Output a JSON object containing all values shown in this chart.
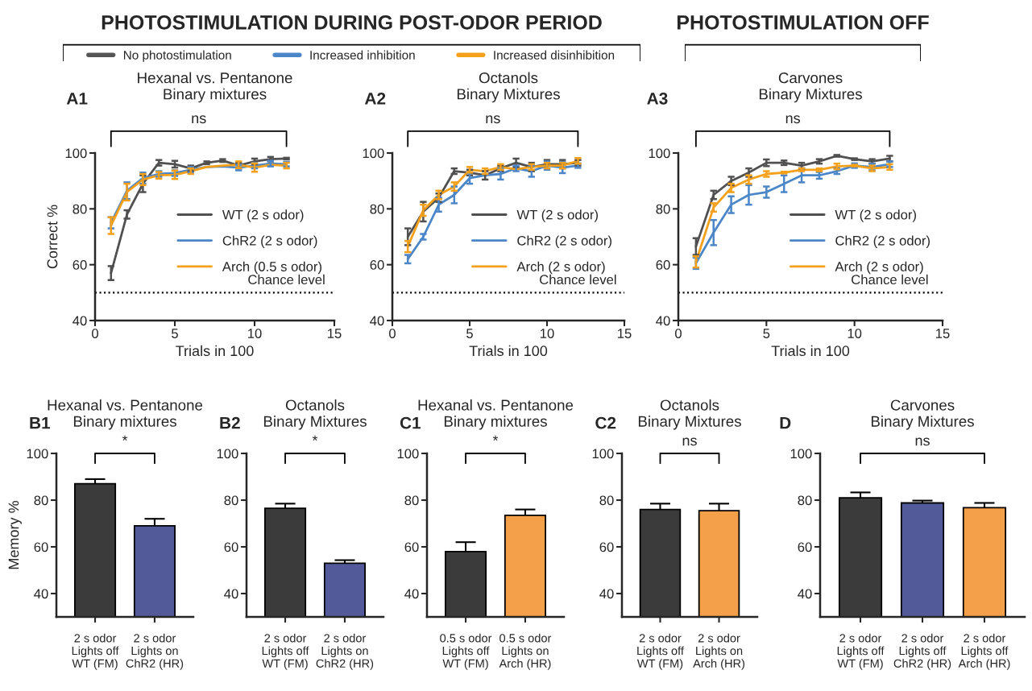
{
  "chart_data": [
    {
      "type": "other",
      "title": "PHOTOSTIMULATION DURING POST-ODOR PERIOD",
      "legend": "bottom",
      "series": [
        {
          "name": "No photostimulation",
          "color": "#555555"
        },
        {
          "name": "Increased inhibition",
          "color": "#4a86c8"
        },
        {
          "name": "Increased disinhibition",
          "color": "#f5a01a"
        }
      ]
    },
    {
      "type": "other",
      "title": "PHOTOSTIMULATION OFF"
    },
    {
      "type": "line",
      "title": "Hexanal vs. Pentanone\nBinary mixtures",
      "xlabel": "Trials in 100",
      "ylabel": "Correct %",
      "annotations": [
        "A1",
        "ns"
      ],
      "x": [
        1,
        2,
        3,
        4,
        5,
        6,
        7,
        8,
        9,
        10,
        11,
        12
      ],
      "xlim": [
        0,
        15
      ],
      "xticks": [
        0,
        5,
        10,
        15
      ],
      "ylim": [
        40,
        100
      ],
      "yticks": [
        40,
        60,
        80,
        100
      ],
      "legend": "right",
      "marker": "none",
      "line_style": "solid",
      "ref_lines": [
        {
          "axis": "y",
          "value": 50,
          "label": "Chance level",
          "line_style": "dotted",
          "color": "#000000"
        }
      ],
      "series": [
        {
          "name": "WT (2 s odor)",
          "color": "#505050",
          "values": [
            57,
            78,
            89,
            96.5,
            96,
            94.5,
            96.5,
            97.3,
            95.5,
            97,
            97.8,
            98
          ],
          "errors": [
            2.5,
            1.5,
            3,
            1,
            1.2,
            1,
            0.5,
            0.5,
            1,
            1,
            0.8,
            0.3
          ]
        },
        {
          "name": "ChR2 (2 s odor)",
          "color": "#4a86c8",
          "values": [
            75,
            86.5,
            91,
            92.5,
            92.8,
            94,
            95,
            95.2,
            94.8,
            95.5,
            96.2,
            96
          ],
          "errors": [
            2,
            3,
            2,
            1,
            1,
            1,
            null,
            null,
            1,
            1,
            1,
            0.8
          ]
        },
        {
          "name": "Arch (0.5 s odor)",
          "color": "#f5a01a",
          "values": [
            74,
            86,
            90.5,
            92,
            92.2,
            93.5,
            95,
            95.5,
            95.8,
            94.8,
            95.8,
            95.5
          ],
          "errors": [
            3,
            3,
            2,
            1.2,
            1.5,
            1,
            null,
            null,
            1.2,
            1.5,
            null,
            1
          ]
        }
      ]
    },
    {
      "type": "line",
      "title": "Octanols\nBinary Mixtures",
      "xlabel": "Trials in 100",
      "annotations": [
        "A2",
        "ns"
      ],
      "x": [
        1,
        2,
        3,
        4,
        5,
        6,
        7,
        8,
        9,
        10,
        11,
        12
      ],
      "xlim": [
        0,
        15
      ],
      "xticks": [
        0,
        5,
        10,
        15
      ],
      "ylim": [
        40,
        100
      ],
      "yticks": [
        40,
        60,
        80,
        100
      ],
      "legend": "right",
      "marker": "none",
      "line_style": "solid",
      "ref_lines": [
        {
          "axis": "y",
          "value": 50,
          "label": "Chance level",
          "line_style": "dotted",
          "color": "#000000"
        }
      ],
      "series": [
        {
          "name": "WT (2 s odor)",
          "color": "#505050",
          "values": [
            70,
            79,
            84,
            93.5,
            93,
            92,
            94.5,
            96.5,
            95,
            96,
            96,
            96.5
          ],
          "errors": [
            3,
            3.5,
            1.5,
            1,
            1,
            1.5,
            1,
            1.5,
            1.5,
            1.5,
            1.5,
            1
          ]
        },
        {
          "name": "ChR2 (2 s odor)",
          "color": "#4a86c8",
          "values": [
            62,
            70,
            81.5,
            85,
            91,
            92,
            92.5,
            94.5,
            93.5,
            95.5,
            94.8,
            95.5
          ],
          "errors": [
            1.5,
            1,
            2.5,
            3,
            2,
            null,
            2,
            1,
            2,
            1.5,
            2,
            0.8
          ]
        },
        {
          "name": "Arch (2 s odor)",
          "color": "#f5a01a",
          "values": [
            66.5,
            79.5,
            85,
            88,
            94,
            93.5,
            95,
            94.2,
            95,
            95.5,
            95.5,
            97.2
          ],
          "errors": [
            2,
            2,
            1.5,
            1.5,
            1,
            1,
            1,
            null,
            1,
            1,
            1,
            1
          ]
        }
      ]
    },
    {
      "type": "line",
      "title": "Carvones\nBinary Mixtures",
      "xlabel": "Trials in 100",
      "annotations": [
        "A3",
        "ns"
      ],
      "x": [
        1,
        2,
        3,
        4,
        5,
        6,
        7,
        8,
        9,
        10,
        11,
        12
      ],
      "xlim": [
        0,
        15
      ],
      "xticks": [
        0,
        5,
        10,
        15
      ],
      "ylim": [
        40,
        100
      ],
      "yticks": [
        40,
        60,
        80,
        100
      ],
      "legend": "right",
      "marker": "none",
      "line_style": "solid",
      "ref_lines": [
        {
          "axis": "y",
          "value": 50,
          "label": "Chance level",
          "line_style": "dotted",
          "color": "#000000"
        }
      ],
      "series": [
        {
          "name": "WT (2 s odor)",
          "color": "#505050",
          "values": [
            66.5,
            85,
            90,
            93,
            96.5,
            96.5,
            95.5,
            97,
            99,
            97.8,
            97,
            98
          ],
          "errors": [
            3,
            1.5,
            1.5,
            1.5,
            1.2,
            0.8,
            1,
            0.8,
            0.3,
            0.3,
            0.8,
            1
          ]
        },
        {
          "name": "ChR2 (2 s odor)",
          "color": "#4a86c8",
          "values": [
            60.5,
            71.5,
            81.5,
            85,
            86,
            89,
            92,
            92,
            93.5,
            95.5,
            95,
            96
          ],
          "errors": [
            2,
            4.5,
            3,
            3.5,
            2,
            3,
            2.5,
            1.2,
            1,
            0.8,
            1.2,
            1
          ]
        },
        {
          "name": "Arch (2 s odor)",
          "color": "#f5a01a",
          "values": [
            61,
            80.5,
            87.5,
            90.5,
            92.5,
            93,
            94,
            94,
            95.2,
            95.5,
            94.5,
            95
          ],
          "errors": [
            2,
            1.5,
            1.5,
            1.5,
            1,
            0.3,
            0.5,
            0.5,
            1,
            0.3,
            1,
            1
          ]
        }
      ]
    },
    {
      "type": "bar",
      "title": "Hexanal vs. Pentanone\nBinary mixtures",
      "ylabel": "Memory %",
      "annotations": [
        "B1",
        "*"
      ],
      "categories": [
        "2 s odor\nLights off\nWT (FM)",
        "2 s odor\nLights on\nChR2 (HR)"
      ],
      "values": [
        87,
        69
      ],
      "errors": [
        2,
        3
      ],
      "colors": [
        "#3b3b3b",
        "#535a99"
      ],
      "ylim": [
        30,
        100
      ],
      "yticks": [
        40,
        60,
        80,
        100
      ]
    },
    {
      "type": "bar",
      "title": "Octanols\nBinary Mixtures",
      "annotations": [
        "B2",
        "*"
      ],
      "categories": [
        "2 s odor\nLights off\nWT (FM)",
        "2 s odor\nLights on\nChR2 (HR)"
      ],
      "values": [
        76.5,
        53
      ],
      "errors": [
        2,
        1.3
      ],
      "colors": [
        "#3b3b3b",
        "#535a99"
      ],
      "ylim": [
        30,
        100
      ],
      "yticks": [
        40,
        60,
        80,
        100
      ]
    },
    {
      "type": "bar",
      "title": "Hexanal vs. Pentanone\nBinary mixtures",
      "annotations": [
        "C1",
        "*"
      ],
      "categories": [
        "0.5 s odor\nLights off\nWT (FM)",
        "0.5 s odor\nLights on\nArch (HR)"
      ],
      "values": [
        58,
        73.5
      ],
      "errors": [
        4,
        2.5
      ],
      "colors": [
        "#3b3b3b",
        "#f4a04a"
      ],
      "ylim": [
        30,
        100
      ],
      "yticks": [
        40,
        60,
        80,
        100
      ]
    },
    {
      "type": "bar",
      "title": "Octanols\nBinary Mixtures",
      "annotations": [
        "C2",
        "ns"
      ],
      "categories": [
        "2 s odor\nLights off\nWT (FM)",
        "2 s odor\nLights on\nArch (HR)"
      ],
      "values": [
        76,
        75.5
      ],
      "errors": [
        2.5,
        3
      ],
      "colors": [
        "#3b3b3b",
        "#f4a04a"
      ],
      "ylim": [
        30,
        100
      ],
      "yticks": [
        40,
        60,
        80,
        100
      ]
    },
    {
      "type": "bar",
      "title": "Carvones\nBinary Mixtures",
      "annotations": [
        "D",
        "ns"
      ],
      "categories": [
        "2 s odor\nLights off\nWT (FM)",
        "2 s odor\nLights off\nChR2 (HR)",
        "2 s odor\nLights off\nArch (HR)"
      ],
      "values": [
        81,
        78.8,
        76.8
      ],
      "errors": [
        2.3,
        1,
        2
      ],
      "colors": [
        "#3b3b3b",
        "#535a99",
        "#f4a04a"
      ],
      "ylim": [
        30,
        100
      ],
      "yticks": [
        40,
        60,
        80,
        100
      ]
    }
  ]
}
